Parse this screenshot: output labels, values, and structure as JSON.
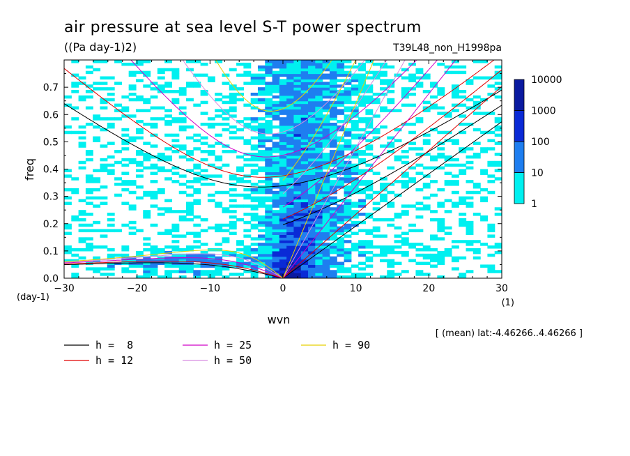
{
  "chart_data": {
    "type": "heatmap",
    "title": "air pressure at sea level S-T power spectrum",
    "subtitle": "((Pa day-1)2)",
    "run_label": "T39L48_non_H1998pa",
    "xlabel": "wvn",
    "ylabel": "freq",
    "x_unit": "(1)",
    "y_unit": "(day-1)",
    "xlim": [
      -30,
      30
    ],
    "ylim": [
      0,
      0.8
    ],
    "x_ticks": [
      -30,
      -20,
      -10,
      0,
      10,
      20,
      30
    ],
    "y_ticks": [
      0.0,
      0.1,
      0.2,
      0.3,
      0.4,
      0.5,
      0.6,
      0.7
    ],
    "y_tick_labels": [
      "0.0",
      "0.1",
      "0.2",
      "0.3",
      "0.4",
      "0.5",
      "0.6",
      "0.7"
    ],
    "note": "[ (mean) lat:-4.46266..4.46266 ]",
    "colorbar": {
      "levels": [
        "1",
        "10",
        "100",
        "1000",
        "10000"
      ],
      "colors": [
        "#00f0f0",
        "#1e7ef0",
        "#0a2ad6",
        "#0a1aa0"
      ]
    },
    "dispersion_curves": [
      {
        "label": "h =  8",
        "h": 8,
        "color": "#000000"
      },
      {
        "label": "h = 12",
        "h": 12,
        "color": "#e00000"
      },
      {
        "label": "h = 25",
        "h": 25,
        "color": "#d000c8"
      },
      {
        "label": "h = 50",
        "h": 50,
        "color": "#d88ce0"
      },
      {
        "label": "h = 90",
        "h": 90,
        "color": "#e8d000"
      }
    ]
  }
}
